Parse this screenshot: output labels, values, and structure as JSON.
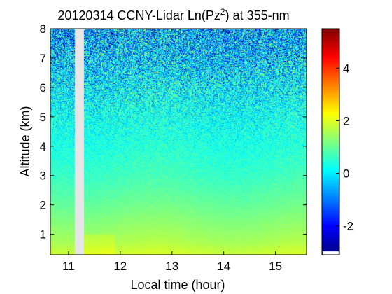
{
  "chart_data": {
    "type": "heatmap",
    "title_main": "20120314 CCNY-Lidar Ln(Pz",
    "title_sup": "2",
    "title_tail": ") at 355-nm",
    "xlabel": "Local time (hour)",
    "ylabel": "Altitude (km)",
    "x_ticks": [
      11,
      12,
      13,
      14,
      15
    ],
    "y_ticks": [
      1,
      2,
      3,
      4,
      5,
      6,
      7,
      8
    ],
    "xlim": [
      10.65,
      15.6
    ],
    "ylim": [
      0.3,
      8.0
    ],
    "data_gap": [
      11.13,
      11.3
    ],
    "colorbar": {
      "ticks": [
        -2,
        0,
        2,
        4
      ],
      "range": [
        -3.1,
        5.5
      ],
      "colormap": "jet"
    },
    "profile": {
      "altitude_km": [
        0.3,
        0.7,
        1.5,
        2.2,
        3.0,
        4.0,
        5.0,
        6.0,
        7.0,
        8.0
      ],
      "mean_value": [
        1.9,
        1.6,
        1.25,
        0.95,
        0.65,
        0.4,
        0.25,
        0.05,
        -0.3,
        -0.6
      ],
      "noise_std": [
        0.05,
        0.06,
        0.08,
        0.12,
        0.18,
        0.3,
        0.55,
        0.9,
        1.2,
        1.4
      ]
    }
  }
}
